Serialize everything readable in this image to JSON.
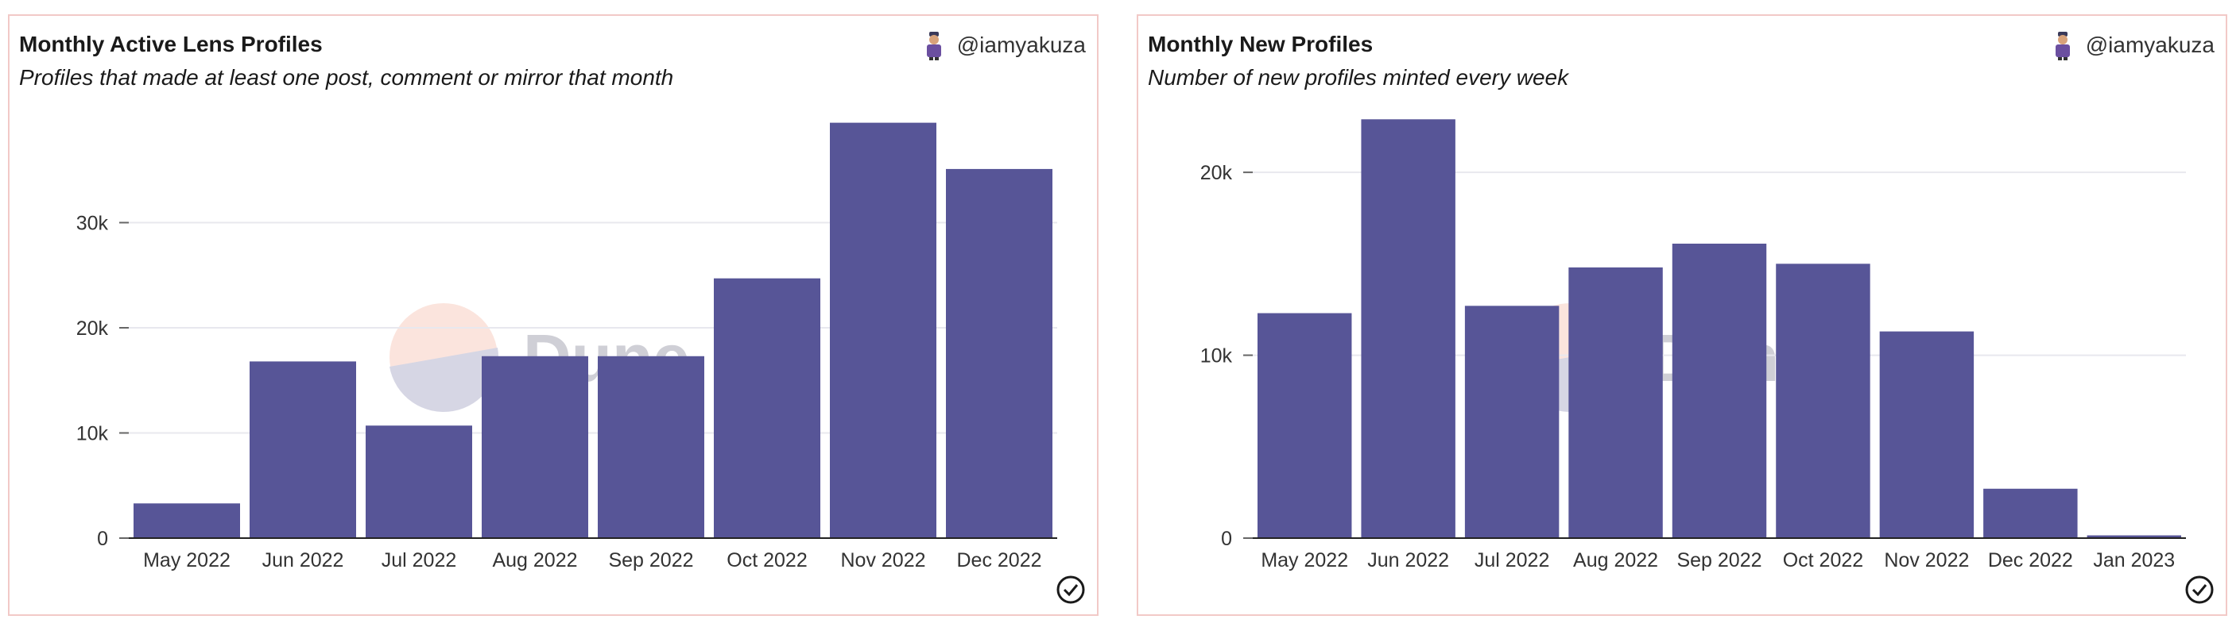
{
  "chart_data": [
    {
      "type": "bar",
      "title": "Monthly Active Lens Profiles",
      "subtitle": "Profiles that made at least one post, comment or mirror that month",
      "author": "@iamyakuza",
      "categories": [
        "May 2022",
        "Jun 2022",
        "Jul 2022",
        "Aug 2022",
        "Sep 2022",
        "Oct 2022",
        "Nov 2022",
        "Dec 2022"
      ],
      "values": [
        3300,
        16800,
        10700,
        17300,
        17300,
        24700,
        39500,
        35100
      ],
      "yticks": [
        0,
        10000,
        20000,
        30000
      ],
      "ytick_labels": [
        "0",
        "10k",
        "20k",
        "30k"
      ],
      "ylim": [
        0,
        40000
      ],
      "grid": true,
      "bar_color": "#575597",
      "watermark": "Dune"
    },
    {
      "type": "bar",
      "title": "Monthly New Profiles",
      "subtitle": "Number of new profiles minted every week",
      "author": "@iamyakuza",
      "categories": [
        "May 2022",
        "Jun 2022",
        "Jul 2022",
        "Aug 2022",
        "Sep 2022",
        "Oct 2022",
        "Nov 2022",
        "Dec 2022",
        "Jan 2023"
      ],
      "values": [
        12300,
        22900,
        12700,
        14800,
        16100,
        15000,
        11300,
        2700,
        150
      ],
      "yticks": [
        0,
        10000,
        20000
      ],
      "ytick_labels": [
        "0",
        "10k",
        "20k"
      ],
      "ylim": [
        0,
        23000
      ],
      "grid": true,
      "bar_color": "#575597",
      "watermark": "Dune"
    }
  ]
}
